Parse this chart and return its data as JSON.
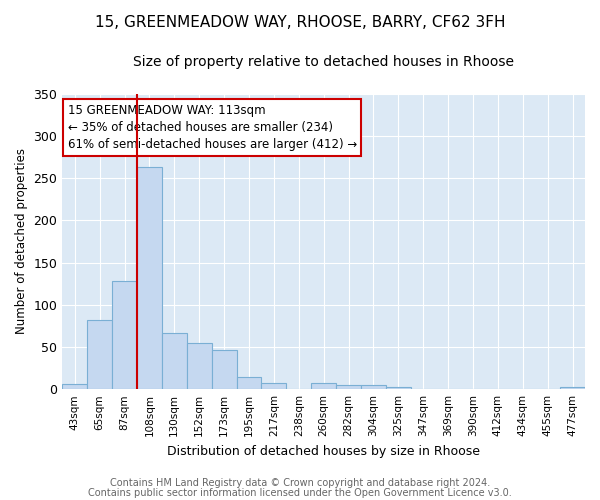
{
  "title": "15, GREENMEADOW WAY, RHOOSE, BARRY, CF62 3FH",
  "subtitle": "Size of property relative to detached houses in Rhoose",
  "xlabel": "Distribution of detached houses by size in Rhoose",
  "ylabel": "Number of detached properties",
  "footnote1": "Contains HM Land Registry data © Crown copyright and database right 2024.",
  "footnote2": "Contains public sector information licensed under the Open Government Licence v3.0.",
  "bar_labels": [
    "43sqm",
    "65sqm",
    "87sqm",
    "108sqm",
    "130sqm",
    "152sqm",
    "173sqm",
    "195sqm",
    "217sqm",
    "238sqm",
    "260sqm",
    "282sqm",
    "304sqm",
    "325sqm",
    "347sqm",
    "369sqm",
    "390sqm",
    "412sqm",
    "434sqm",
    "455sqm",
    "477sqm"
  ],
  "bar_values": [
    6,
    82,
    128,
    263,
    67,
    55,
    46,
    15,
    7,
    0,
    7,
    5,
    5,
    2,
    0,
    0,
    0,
    0,
    0,
    0,
    3
  ],
  "bar_color": "#c5d8f0",
  "bar_edge_color": "#7aafd4",
  "bg_color": "#dce9f5",
  "grid_color": "#ffffff",
  "red_line_color": "#cc0000",
  "red_line_index": 3,
  "annotation_line1": "15 GREENMEADOW WAY: 113sqm",
  "annotation_line2": "← 35% of detached houses are smaller (234)",
  "annotation_line3": "61% of semi-detached houses are larger (412) →",
  "ylim": [
    0,
    350
  ],
  "yticks": [
    0,
    50,
    100,
    150,
    200,
    250,
    300,
    350
  ],
  "title_fontsize": 11,
  "subtitle_fontsize": 10,
  "footnote_color": "#666666"
}
